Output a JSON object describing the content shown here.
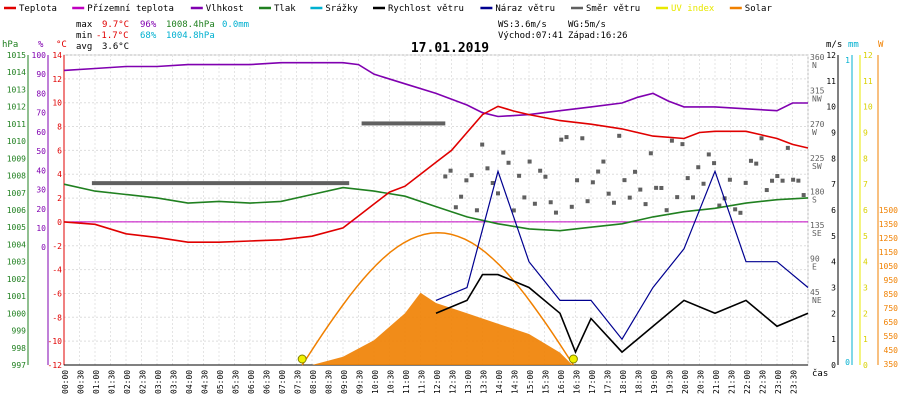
{
  "legend": [
    {
      "label": "Teplota",
      "color": "#e00000"
    },
    {
      "label": "Přízemní teplota",
      "color": "#c000c0"
    },
    {
      "label": "Vlhkost",
      "color": "#8000b0"
    },
    {
      "label": "Tlak",
      "color": "#208020"
    },
    {
      "label": "Srážky",
      "color": "#00b0d0"
    },
    {
      "label": "Rychlost větru",
      "color": "#000000"
    },
    {
      "label": "Náraz větru",
      "color": "#000090"
    },
    {
      "label": "Směr větru",
      "color": "#606060"
    },
    {
      "label": "UV index",
      "color": "#e8e800"
    },
    {
      "label": "Solar",
      "color": "#f08000"
    }
  ],
  "stats": {
    "max": {
      "label": "max",
      "temp": "9.7°C",
      "hum": "96%",
      "press": "1008.4hPa",
      "rain": "0.0mm"
    },
    "min": {
      "label": "min",
      "temp": "-1.7°C",
      "hum": "68%",
      "press": "1004.8hPa"
    },
    "avg": {
      "label": "avg",
      "temp": "3.6°C"
    }
  },
  "wind_info": {
    "ws": "WS:3.6m/s",
    "wg": "WG:5m/s",
    "sunrise": "Východ:07:41",
    "sunset": "Západ:16:26"
  },
  "title": "17.01.2019",
  "units": {
    "hpa": "hPa",
    "pct": "%",
    "degc": "°C",
    "ms": "m/s",
    "mm": "mm",
    "w": "W",
    "time": "čas"
  },
  "colors": {
    "temp": "#e00000",
    "hum": "#8000b0",
    "press": "#208020",
    "rain": "#00b0d0",
    "wind": "#000000",
    "gust": "#000090",
    "dir": "#606060",
    "uv": "#e8e800",
    "solar": "#f08000",
    "ground": "#c000c0"
  },
  "axes": {
    "pressure": [
      "1015",
      "1014",
      "1013",
      "1012",
      "1011",
      "1010",
      "1009",
      "1008",
      "1007",
      "1006",
      "1005",
      "1004",
      "1003",
      "1002",
      "1001",
      "1000",
      "999",
      "998",
      "997"
    ],
    "humidity": [
      "100",
      "90",
      "80",
      "70",
      "60",
      "50",
      "40",
      "30",
      "20",
      "10",
      "0"
    ],
    "temperature": [
      "14",
      "12",
      "10",
      "8",
      "6",
      "4",
      "2",
      "0",
      "-2",
      "-4",
      "-6",
      "-8",
      "-10",
      "-12"
    ],
    "direction": [
      [
        "360",
        "N"
      ],
      [
        "315",
        "NW"
      ],
      [
        "270",
        "W"
      ],
      [
        "225",
        "SW"
      ],
      [
        "180",
        "S"
      ],
      [
        "135",
        "SE"
      ],
      [
        "90",
        "E"
      ],
      [
        "45",
        "NE"
      ]
    ],
    "wind_ms": [
      "12",
      "11",
      "10",
      "9",
      "8",
      "7",
      "6",
      "5",
      "4",
      "3",
      "2",
      "1",
      "0"
    ],
    "rain_mm": [
      "1",
      "0"
    ],
    "uv": [
      "12",
      "11",
      "10",
      "9",
      "8",
      "7",
      "6",
      "5",
      "4",
      "3",
      "2",
      "1",
      "0"
    ],
    "solar_w": [
      "1500",
      "1350",
      "1250",
      "1150",
      "1050",
      "950",
      "850",
      "750",
      "650",
      "550",
      "450",
      "350",
      "250",
      "150",
      "50"
    ],
    "time": [
      "00:00",
      "00:30",
      "01:00",
      "01:30",
      "02:00",
      "02:30",
      "03:00",
      "03:30",
      "04:00",
      "04:30",
      "05:00",
      "05:30",
      "06:00",
      "06:30",
      "07:00",
      "07:30",
      "08:00",
      "08:30",
      "09:00",
      "09:30",
      "10:00",
      "10:30",
      "11:00",
      "11:30",
      "12:00",
      "12:30",
      "13:00",
      "13:30",
      "14:00",
      "14:30",
      "15:00",
      "15:30",
      "16:00",
      "16:30",
      "17:00",
      "17:30",
      "18:00",
      "18:30",
      "19:00",
      "19:30",
      "20:00",
      "20:30",
      "21:00",
      "21:30",
      "22:00",
      "22:30",
      "23:00",
      "23:30"
    ]
  },
  "chart_data": {
    "type": "line",
    "title": "17.01.2019",
    "x_unit": "hours",
    "xlim": [
      0,
      24
    ],
    "series": [
      {
        "name": "Teplota",
        "unit": "°C",
        "values": [
          [
            0,
            0
          ],
          [
            1,
            -0.2
          ],
          [
            2,
            -1
          ],
          [
            3,
            -1.3
          ],
          [
            4,
            -1.7
          ],
          [
            5,
            -1.7
          ],
          [
            6,
            -1.6
          ],
          [
            7,
            -1.5
          ],
          [
            8,
            -1.2
          ],
          [
            9,
            -0.5
          ],
          [
            9.5,
            0.5
          ],
          [
            10,
            1.5
          ],
          [
            10.5,
            2.5
          ],
          [
            11,
            3
          ],
          [
            11.5,
            4
          ],
          [
            12,
            5
          ],
          [
            12.5,
            6
          ],
          [
            13,
            7.5
          ],
          [
            13.5,
            9
          ],
          [
            14,
            9.7
          ],
          [
            14.5,
            9.3
          ],
          [
            15,
            9
          ],
          [
            16,
            8.5
          ],
          [
            17,
            8.2
          ],
          [
            18,
            7.8
          ],
          [
            19,
            7.2
          ],
          [
            20,
            7
          ],
          [
            20.5,
            7.5
          ],
          [
            21,
            7.6
          ],
          [
            22,
            7.6
          ],
          [
            22.5,
            7.3
          ],
          [
            23,
            7
          ],
          [
            23.5,
            6.5
          ],
          [
            24,
            6.2
          ]
        ]
      },
      {
        "name": "Vlhkost",
        "unit": "%",
        "values": [
          [
            0,
            92
          ],
          [
            1,
            93
          ],
          [
            2,
            94
          ],
          [
            3,
            94
          ],
          [
            4,
            95
          ],
          [
            5,
            95
          ],
          [
            6,
            95
          ],
          [
            7,
            96
          ],
          [
            8,
            96
          ],
          [
            9,
            96
          ],
          [
            9.5,
            95
          ],
          [
            10,
            90
          ],
          [
            11,
            85
          ],
          [
            12,
            80
          ],
          [
            13,
            74
          ],
          [
            13.5,
            70
          ],
          [
            14,
            68
          ],
          [
            15,
            69
          ],
          [
            16,
            71
          ],
          [
            17,
            73
          ],
          [
            18,
            75
          ],
          [
            18.5,
            78
          ],
          [
            19,
            80
          ],
          [
            19.5,
            76
          ],
          [
            20,
            73
          ],
          [
            21,
            73
          ],
          [
            22,
            72
          ],
          [
            23,
            71
          ],
          [
            23.5,
            75
          ],
          [
            24,
            75
          ]
        ]
      },
      {
        "name": "Tlak",
        "unit": "hPa",
        "values": [
          [
            0,
            1007.5
          ],
          [
            1,
            1007.1
          ],
          [
            2,
            1006.9
          ],
          [
            3,
            1006.7
          ],
          [
            4,
            1006.4
          ],
          [
            5,
            1006.5
          ],
          [
            6,
            1006.4
          ],
          [
            7,
            1006.5
          ],
          [
            8,
            1006.9
          ],
          [
            9,
            1007.3
          ],
          [
            10,
            1007.1
          ],
          [
            11,
            1006.8
          ],
          [
            12,
            1006.2
          ],
          [
            13,
            1005.6
          ],
          [
            14,
            1005.2
          ],
          [
            15,
            1004.9
          ],
          [
            16,
            1004.8
          ],
          [
            17,
            1005.0
          ],
          [
            18,
            1005.2
          ],
          [
            19,
            1005.6
          ],
          [
            20,
            1005.9
          ],
          [
            21,
            1006.1
          ],
          [
            22,
            1006.4
          ],
          [
            23,
            1006.6
          ],
          [
            24,
            1006.7
          ]
        ]
      },
      {
        "name": "Rychlost větru",
        "unit": "m/s",
        "values": [
          [
            12,
            2
          ],
          [
            13,
            2.5
          ],
          [
            13.5,
            3.5
          ],
          [
            14,
            3.5
          ],
          [
            15,
            3
          ],
          [
            16,
            2
          ],
          [
            16.5,
            0.5
          ],
          [
            17,
            1.8
          ],
          [
            18,
            0.5
          ],
          [
            19,
            1.5
          ],
          [
            20,
            2.5
          ],
          [
            21,
            2
          ],
          [
            22,
            2.5
          ],
          [
            23,
            1.5
          ],
          [
            24,
            2
          ]
        ]
      },
      {
        "name": "Náraz větru",
        "unit": "m/s",
        "values": [
          [
            12,
            2.5
          ],
          [
            13,
            3
          ],
          [
            14,
            7.5
          ],
          [
            15,
            4
          ],
          [
            16,
            2.5
          ],
          [
            17,
            2.5
          ],
          [
            18,
            1
          ],
          [
            19,
            3
          ],
          [
            20,
            4.5
          ],
          [
            21,
            7.5
          ],
          [
            22,
            4
          ],
          [
            23,
            4
          ],
          [
            24,
            3
          ]
        ]
      },
      {
        "name": "Solar",
        "unit": "W",
        "values": [
          [
            8,
            0
          ],
          [
            9,
            40
          ],
          [
            10,
            120
          ],
          [
            11,
            250
          ],
          [
            11.5,
            350
          ],
          [
            12,
            300
          ],
          [
            13,
            250
          ],
          [
            14,
            200
          ],
          [
            15,
            150
          ],
          [
            16,
            60
          ],
          [
            16.4,
            0
          ]
        ]
      }
    ]
  }
}
